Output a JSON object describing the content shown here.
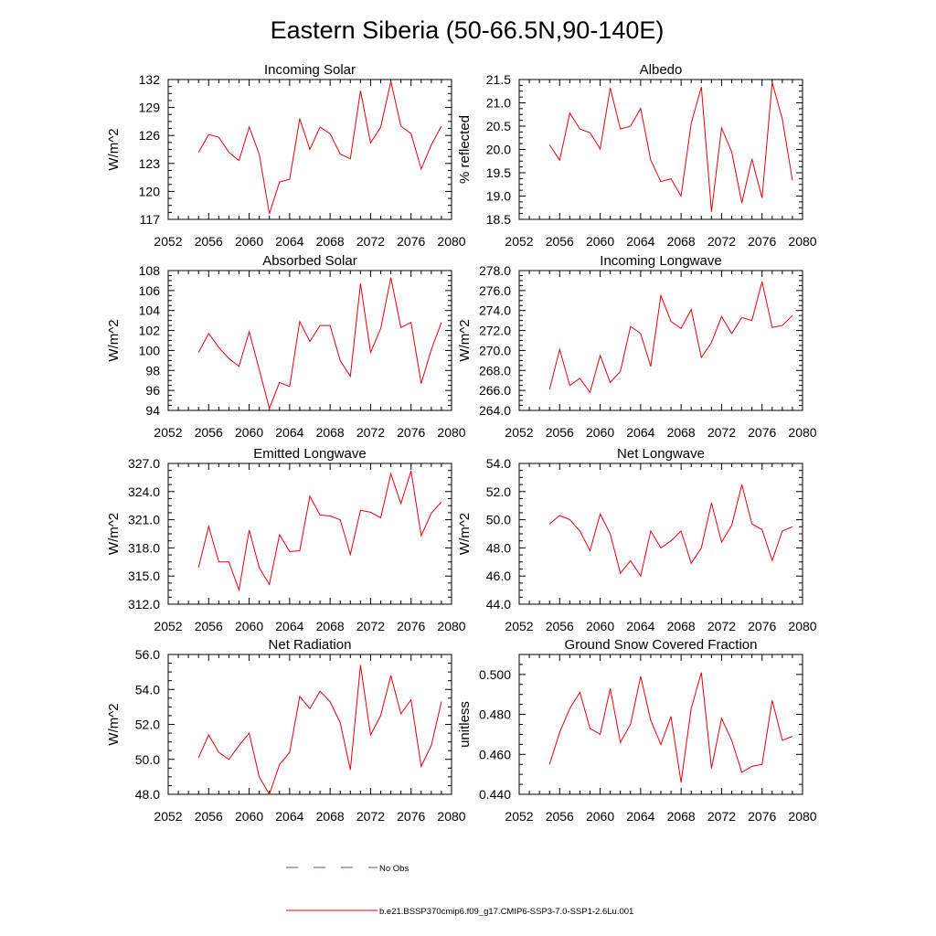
{
  "figure": {
    "title": "Eastern Siberia (50-66.5N,90-140E)"
  },
  "legend": [
    {
      "label": "No Obs",
      "color": "#4a5aa8",
      "dash": true
    },
    {
      "label": "b.e21.BSSP370cmip6.f09_g17.CMIP6-SSP3-7.0-SSP1-2.6Lu.001",
      "color": "#e8000b",
      "dash": false
    }
  ],
  "chart_data": [
    {
      "type": "line",
      "title": "Incoming Solar",
      "xlabel": "",
      "ylabel": "W/m^2",
      "xlim": [
        2052,
        2080
      ],
      "ylim": [
        117,
        132
      ],
      "grid": false,
      "xticks": [
        "2052",
        "2056",
        "2060",
        "2064",
        "2068",
        "2072",
        "2076",
        "2080"
      ],
      "yticks": [
        "117",
        "120",
        "123",
        "126",
        "129",
        "132"
      ],
      "x": [
        2055,
        2056,
        2057,
        2058,
        2059,
        2060,
        2061,
        2062,
        2063,
        2064,
        2065,
        2066,
        2067,
        2068,
        2069,
        2070,
        2071,
        2072,
        2073,
        2074,
        2075,
        2076,
        2077,
        2078,
        2079
      ],
      "series": [
        {
          "color": "#e8000b",
          "values": [
            124.2,
            126.1,
            125.8,
            124.2,
            123.3,
            126.9,
            124,
            117.6,
            121,
            121.3,
            127.8,
            124.5,
            126.9,
            126.2,
            124,
            123.5,
            130.8,
            125.2,
            126.9,
            131.8,
            127,
            126.2,
            122.4,
            125,
            127
          ]
        }
      ]
    },
    {
      "type": "line",
      "title": "Albedo",
      "xlabel": "",
      "ylabel": "% reflected",
      "xlim": [
        2052,
        2080
      ],
      "ylim": [
        18.5,
        21.5
      ],
      "grid": false,
      "xticks": [
        "2052",
        "2056",
        "2060",
        "2064",
        "2068",
        "2072",
        "2076",
        "2080"
      ],
      "yticks": [
        "18.5",
        "19.0",
        "19.5",
        "20.0",
        "20.5",
        "21.0",
        "21.5"
      ],
      "x": [
        2055,
        2056,
        2057,
        2058,
        2059,
        2060,
        2061,
        2062,
        2063,
        2064,
        2065,
        2066,
        2067,
        2068,
        2069,
        2070,
        2071,
        2072,
        2073,
        2074,
        2075,
        2076,
        2077,
        2078,
        2079
      ],
      "series": [
        {
          "color": "#e8000b",
          "values": [
            20.1,
            19.77,
            20.78,
            20.44,
            20.36,
            20.01,
            21.32,
            20.44,
            20.5,
            20.88,
            19.77,
            19.31,
            19.37,
            19,
            20.56,
            21.34,
            18.66,
            20.46,
            19.95,
            18.85,
            19.8,
            18.96,
            21.44,
            20.65,
            19.34
          ]
        }
      ]
    },
    {
      "type": "line",
      "title": "Absorbed Solar",
      "xlabel": "",
      "ylabel": "W/m^2",
      "xlim": [
        2052,
        2080
      ],
      "ylim": [
        94,
        108
      ],
      "grid": false,
      "xticks": [
        "2052",
        "2056",
        "2060",
        "2064",
        "2068",
        "2072",
        "2076",
        "2080"
      ],
      "yticks": [
        "94",
        "96",
        "98",
        "100",
        "102",
        "104",
        "106",
        "108"
      ],
      "x": [
        2055,
        2056,
        2057,
        2058,
        2059,
        2060,
        2061,
        2062,
        2063,
        2064,
        2065,
        2066,
        2067,
        2068,
        2069,
        2070,
        2071,
        2072,
        2073,
        2074,
        2075,
        2076,
        2077,
        2078,
        2079
      ],
      "series": [
        {
          "color": "#e8000b",
          "values": [
            99.8,
            101.7,
            100.3,
            99.2,
            98.4,
            101.9,
            98.1,
            94.2,
            96.8,
            96.4,
            102.9,
            100.9,
            102.5,
            102.5,
            99,
            97.4,
            106.7,
            99.8,
            102.2,
            107.3,
            102.3,
            102.8,
            96.7,
            100.1,
            102.8
          ]
        }
      ]
    },
    {
      "type": "line",
      "title": "Incoming Longwave",
      "xlabel": "",
      "ylabel": "W/m^2",
      "xlim": [
        2052,
        2080
      ],
      "ylim": [
        264,
        278
      ],
      "grid": false,
      "xticks": [
        "2052",
        "2056",
        "2060",
        "2064",
        "2068",
        "2072",
        "2076",
        "2080"
      ],
      "yticks": [
        "264.0",
        "266.0",
        "268.0",
        "270.0",
        "272.0",
        "274.0",
        "276.0",
        "278.0"
      ],
      "x": [
        2055,
        2056,
        2057,
        2058,
        2059,
        2060,
        2061,
        2062,
        2063,
        2064,
        2065,
        2066,
        2067,
        2068,
        2069,
        2070,
        2071,
        2072,
        2073,
        2074,
        2075,
        2076,
        2077,
        2078,
        2079
      ],
      "series": [
        {
          "color": "#e8000b",
          "values": [
            266.1,
            270.1,
            266.5,
            267.2,
            265.8,
            269.5,
            266.8,
            267.9,
            272.4,
            271.7,
            268.4,
            275.5,
            272.9,
            272.2,
            274.1,
            269.3,
            270.8,
            273.4,
            271.7,
            273.3,
            273,
            276.9,
            272.3,
            272.5,
            273.5
          ]
        }
      ]
    },
    {
      "type": "line",
      "title": "Emitted Longwave",
      "xlabel": "",
      "ylabel": "W/m^2",
      "xlim": [
        2052,
        2080
      ],
      "ylim": [
        312,
        327
      ],
      "grid": false,
      "xticks": [
        "2052",
        "2056",
        "2060",
        "2064",
        "2068",
        "2072",
        "2076",
        "2080"
      ],
      "yticks": [
        "312.0",
        "315.0",
        "318.0",
        "321.0",
        "324.0",
        "327.0"
      ],
      "x": [
        2055,
        2056,
        2057,
        2058,
        2059,
        2060,
        2061,
        2062,
        2063,
        2064,
        2065,
        2066,
        2067,
        2068,
        2069,
        2070,
        2071,
        2072,
        2073,
        2074,
        2075,
        2076,
        2077,
        2078,
        2079
      ],
      "series": [
        {
          "color": "#e8000b",
          "values": [
            315.9,
            320.3,
            316.5,
            316.5,
            313.5,
            319.9,
            315.9,
            314.1,
            319.4,
            317.6,
            317.7,
            323.5,
            321.5,
            321.4,
            321,
            317.3,
            322,
            321.8,
            321.2,
            325.9,
            322.7,
            326.2,
            319.3,
            321.7,
            322.9
          ]
        }
      ]
    },
    {
      "type": "line",
      "title": "Net Longwave",
      "xlabel": "",
      "ylabel": "W/m^2",
      "xlim": [
        2052,
        2080
      ],
      "ylim": [
        44,
        54
      ],
      "grid": false,
      "xticks": [
        "2052",
        "2056",
        "2060",
        "2064",
        "2068",
        "2072",
        "2076",
        "2080"
      ],
      "yticks": [
        "44.0",
        "46.0",
        "48.0",
        "50.0",
        "52.0",
        "54.0"
      ],
      "x": [
        2055,
        2056,
        2057,
        2058,
        2059,
        2060,
        2061,
        2062,
        2063,
        2064,
        2065,
        2066,
        2067,
        2068,
        2069,
        2070,
        2071,
        2072,
        2073,
        2074,
        2075,
        2076,
        2077,
        2078,
        2079
      ],
      "series": [
        {
          "color": "#e8000b",
          "values": [
            49.7,
            50.3,
            50,
            49.2,
            47.8,
            50.4,
            49,
            46.2,
            47.1,
            46,
            49.2,
            48,
            48.5,
            49.2,
            46.9,
            48,
            51.2,
            48.4,
            49.6,
            52.5,
            49.7,
            49.3,
            47.1,
            49.2,
            49.5
          ]
        }
      ]
    },
    {
      "type": "line",
      "title": "Net Radiation",
      "xlabel": "",
      "ylabel": "W/m^2",
      "xlim": [
        2052,
        2080
      ],
      "ylim": [
        48,
        56
      ],
      "grid": false,
      "xticks": [
        "2052",
        "2056",
        "2060",
        "2064",
        "2068",
        "2072",
        "2076",
        "2080"
      ],
      "yticks": [
        "48.0",
        "50.0",
        "52.0",
        "54.0",
        "56.0"
      ],
      "x": [
        2055,
        2056,
        2057,
        2058,
        2059,
        2060,
        2061,
        2062,
        2063,
        2064,
        2065,
        2066,
        2067,
        2068,
        2069,
        2070,
        2071,
        2072,
        2073,
        2074,
        2075,
        2076,
        2077,
        2078,
        2079
      ],
      "series": [
        {
          "color": "#e8000b",
          "values": [
            50.1,
            51.4,
            50.4,
            50,
            50.8,
            51.5,
            49,
            48,
            49.7,
            50.4,
            53.6,
            52.9,
            53.9,
            53.3,
            52.1,
            49.4,
            55.4,
            51.4,
            52.5,
            54.8,
            52.6,
            53.4,
            49.6,
            50.8,
            53.3
          ]
        }
      ]
    },
    {
      "type": "line",
      "title": "Ground Snow Covered Fraction",
      "xlabel": "",
      "ylabel": "unitless",
      "xlim": [
        2052,
        2080
      ],
      "ylim": [
        0.44,
        0.51
      ],
      "grid": false,
      "xticks": [
        "2052",
        "2056",
        "2060",
        "2064",
        "2068",
        "2072",
        "2076",
        "2080"
      ],
      "yticks": [
        "0.440",
        "0.460",
        "0.480",
        "0.500"
      ],
      "x": [
        2055,
        2056,
        2057,
        2058,
        2059,
        2060,
        2061,
        2062,
        2063,
        2064,
        2065,
        2066,
        2067,
        2068,
        2069,
        2070,
        2071,
        2072,
        2073,
        2074,
        2075,
        2076,
        2077,
        2078,
        2079
      ],
      "series": [
        {
          "color": "#e8000b",
          "values": [
            0.455,
            0.471,
            0.483,
            0.491,
            0.473,
            0.47,
            0.493,
            0.466,
            0.475,
            0.499,
            0.477,
            0.465,
            0.479,
            0.446,
            0.483,
            0.501,
            0.453,
            0.478,
            0.467,
            0.451,
            0.454,
            0.455,
            0.487,
            0.467,
            0.469
          ]
        }
      ]
    }
  ]
}
